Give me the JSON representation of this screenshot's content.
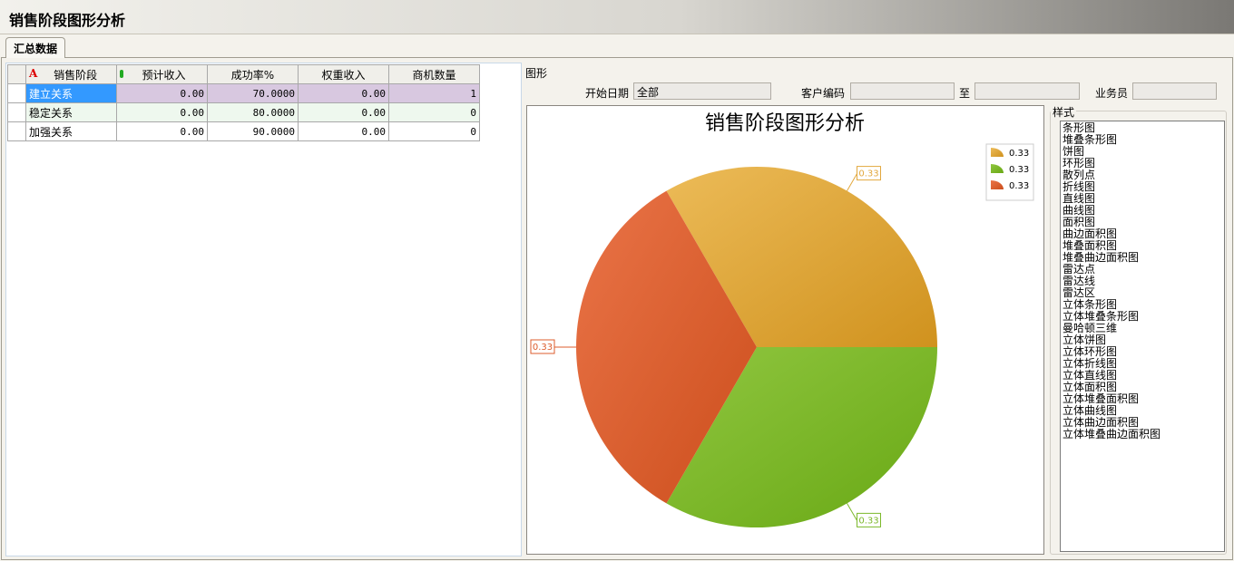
{
  "window": {
    "title": "销售阶段图形分析"
  },
  "tabs": [
    {
      "label": "汇总数据",
      "active": true
    }
  ],
  "grid": {
    "headers": [
      "销售阶段",
      "预计收入",
      "成功率%",
      "权重收入",
      "商机数量"
    ],
    "rows": [
      {
        "stage": "建立关系",
        "expected": "0.00",
        "rate": "70.0000",
        "weighted": "0.00",
        "count": "1",
        "selected": true
      },
      {
        "stage": "稳定关系",
        "expected": "0.00",
        "rate": "80.0000",
        "weighted": "0.00",
        "count": "0"
      },
      {
        "stage": "加强关系",
        "expected": "0.00",
        "rate": "90.0000",
        "weighted": "0.00",
        "count": "0"
      }
    ]
  },
  "chart_panel": {
    "group_label": "图形",
    "filters": {
      "start_date_label": "开始日期",
      "start_date_value": "全部",
      "customer_code_label": "客户编码",
      "customer_code_value": "",
      "to_label": "至",
      "to_value": "",
      "salesman_label": "业务员",
      "salesman_value": ""
    },
    "styles_label": "样式",
    "styles": [
      "条形图",
      "堆叠条形图",
      "饼图",
      "环形图",
      "散列点",
      "折线图",
      "直线图",
      "曲线图",
      "面积图",
      "曲边面积图",
      "堆叠面积图",
      "堆叠曲边面积图",
      "雷达点",
      "雷达线",
      "雷达区",
      "立体条形图",
      "立体堆叠条形图",
      "曼哈顿三维",
      "立体饼图",
      "立体环形图",
      "立体折线图",
      "立体直线图",
      "立体面积图",
      "立体堆叠面积图",
      "立体曲线图",
      "立体曲边面积图",
      "立体堆叠曲边面积图"
    ],
    "selected_style": "饼图"
  },
  "chart_data": {
    "type": "pie",
    "title": "销售阶段图形分析",
    "values": [
      0.33,
      0.33,
      0.33
    ],
    "labels": [
      "0.33",
      "0.33",
      "0.33"
    ],
    "legend": [
      "0.33",
      "0.33",
      "0.33"
    ],
    "legend_position": "top-right",
    "colors": [
      "#e2a83e",
      "#7cb82c",
      "#dc5c2c"
    ]
  }
}
